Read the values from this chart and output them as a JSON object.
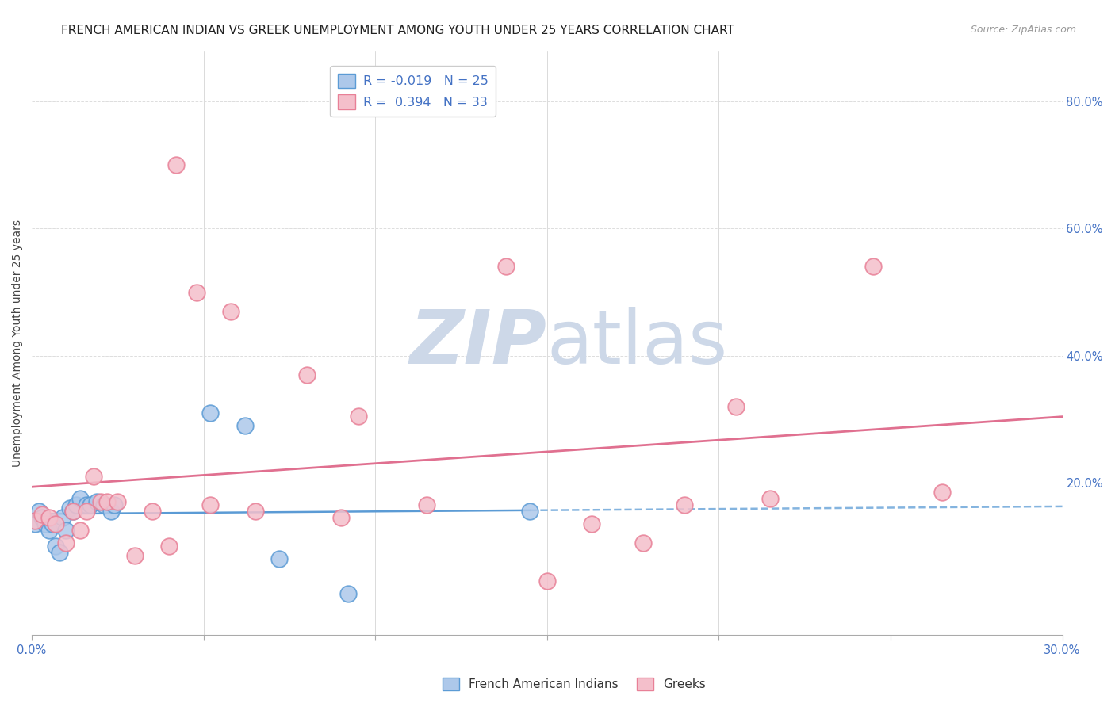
{
  "title": "FRENCH AMERICAN INDIAN VS GREEK UNEMPLOYMENT AMONG YOUTH UNDER 25 YEARS CORRELATION CHART",
  "source": "Source: ZipAtlas.com",
  "ylabel": "Unemployment Among Youth under 25 years",
  "xlim": [
    0.0,
    0.3
  ],
  "ylim": [
    -0.04,
    0.88
  ],
  "y_ticks_right": [
    0.0,
    0.2,
    0.4,
    0.6,
    0.8
  ],
  "y_tick_labels_right": [
    "",
    "20.0%",
    "40.0%",
    "60.0%",
    "80.0%"
  ],
  "legend_r1": "R = -0.019   N = 25",
  "legend_r2": "R =  0.394   N = 33",
  "blue_scatter_x": [
    0.001,
    0.002,
    0.003,
    0.004,
    0.005,
    0.006,
    0.007,
    0.008,
    0.009,
    0.01,
    0.011,
    0.012,
    0.013,
    0.014,
    0.016,
    0.017,
    0.019,
    0.021,
    0.023,
    0.024,
    0.052,
    0.062,
    0.072,
    0.092,
    0.145
  ],
  "blue_scatter_y": [
    0.135,
    0.155,
    0.145,
    0.135,
    0.125,
    0.135,
    0.1,
    0.09,
    0.145,
    0.125,
    0.16,
    0.155,
    0.165,
    0.175,
    0.165,
    0.165,
    0.17,
    0.165,
    0.155,
    0.165,
    0.31,
    0.29,
    0.08,
    0.025,
    0.155
  ],
  "pink_scatter_x": [
    0.001,
    0.003,
    0.005,
    0.007,
    0.01,
    0.012,
    0.014,
    0.016,
    0.018,
    0.02,
    0.022,
    0.025,
    0.03,
    0.035,
    0.04,
    0.042,
    0.048,
    0.052,
    0.058,
    0.065,
    0.08,
    0.09,
    0.095,
    0.115,
    0.138,
    0.15,
    0.163,
    0.178,
    0.19,
    0.205,
    0.215,
    0.245,
    0.265
  ],
  "pink_scatter_y": [
    0.14,
    0.15,
    0.145,
    0.135,
    0.105,
    0.155,
    0.125,
    0.155,
    0.21,
    0.17,
    0.17,
    0.17,
    0.085,
    0.155,
    0.1,
    0.7,
    0.5,
    0.165,
    0.47,
    0.155,
    0.37,
    0.145,
    0.305,
    0.165,
    0.54,
    0.045,
    0.135,
    0.105,
    0.165,
    0.32,
    0.175,
    0.54,
    0.185
  ],
  "scatter_blue_face": "#adc8ea",
  "scatter_blue_edge": "#5b9bd5",
  "scatter_pink_face": "#f4bfcb",
  "scatter_pink_edge": "#e88097",
  "blue_line_color": "#5b9bd5",
  "pink_line_color": "#e07090",
  "watermark_zip_color": "#cdd8e8",
  "watermark_atlas_color": "#cdd8e8",
  "background_color": "#ffffff",
  "title_fontsize": 11,
  "tick_fontsize": 10.5,
  "source_fontsize": 9
}
